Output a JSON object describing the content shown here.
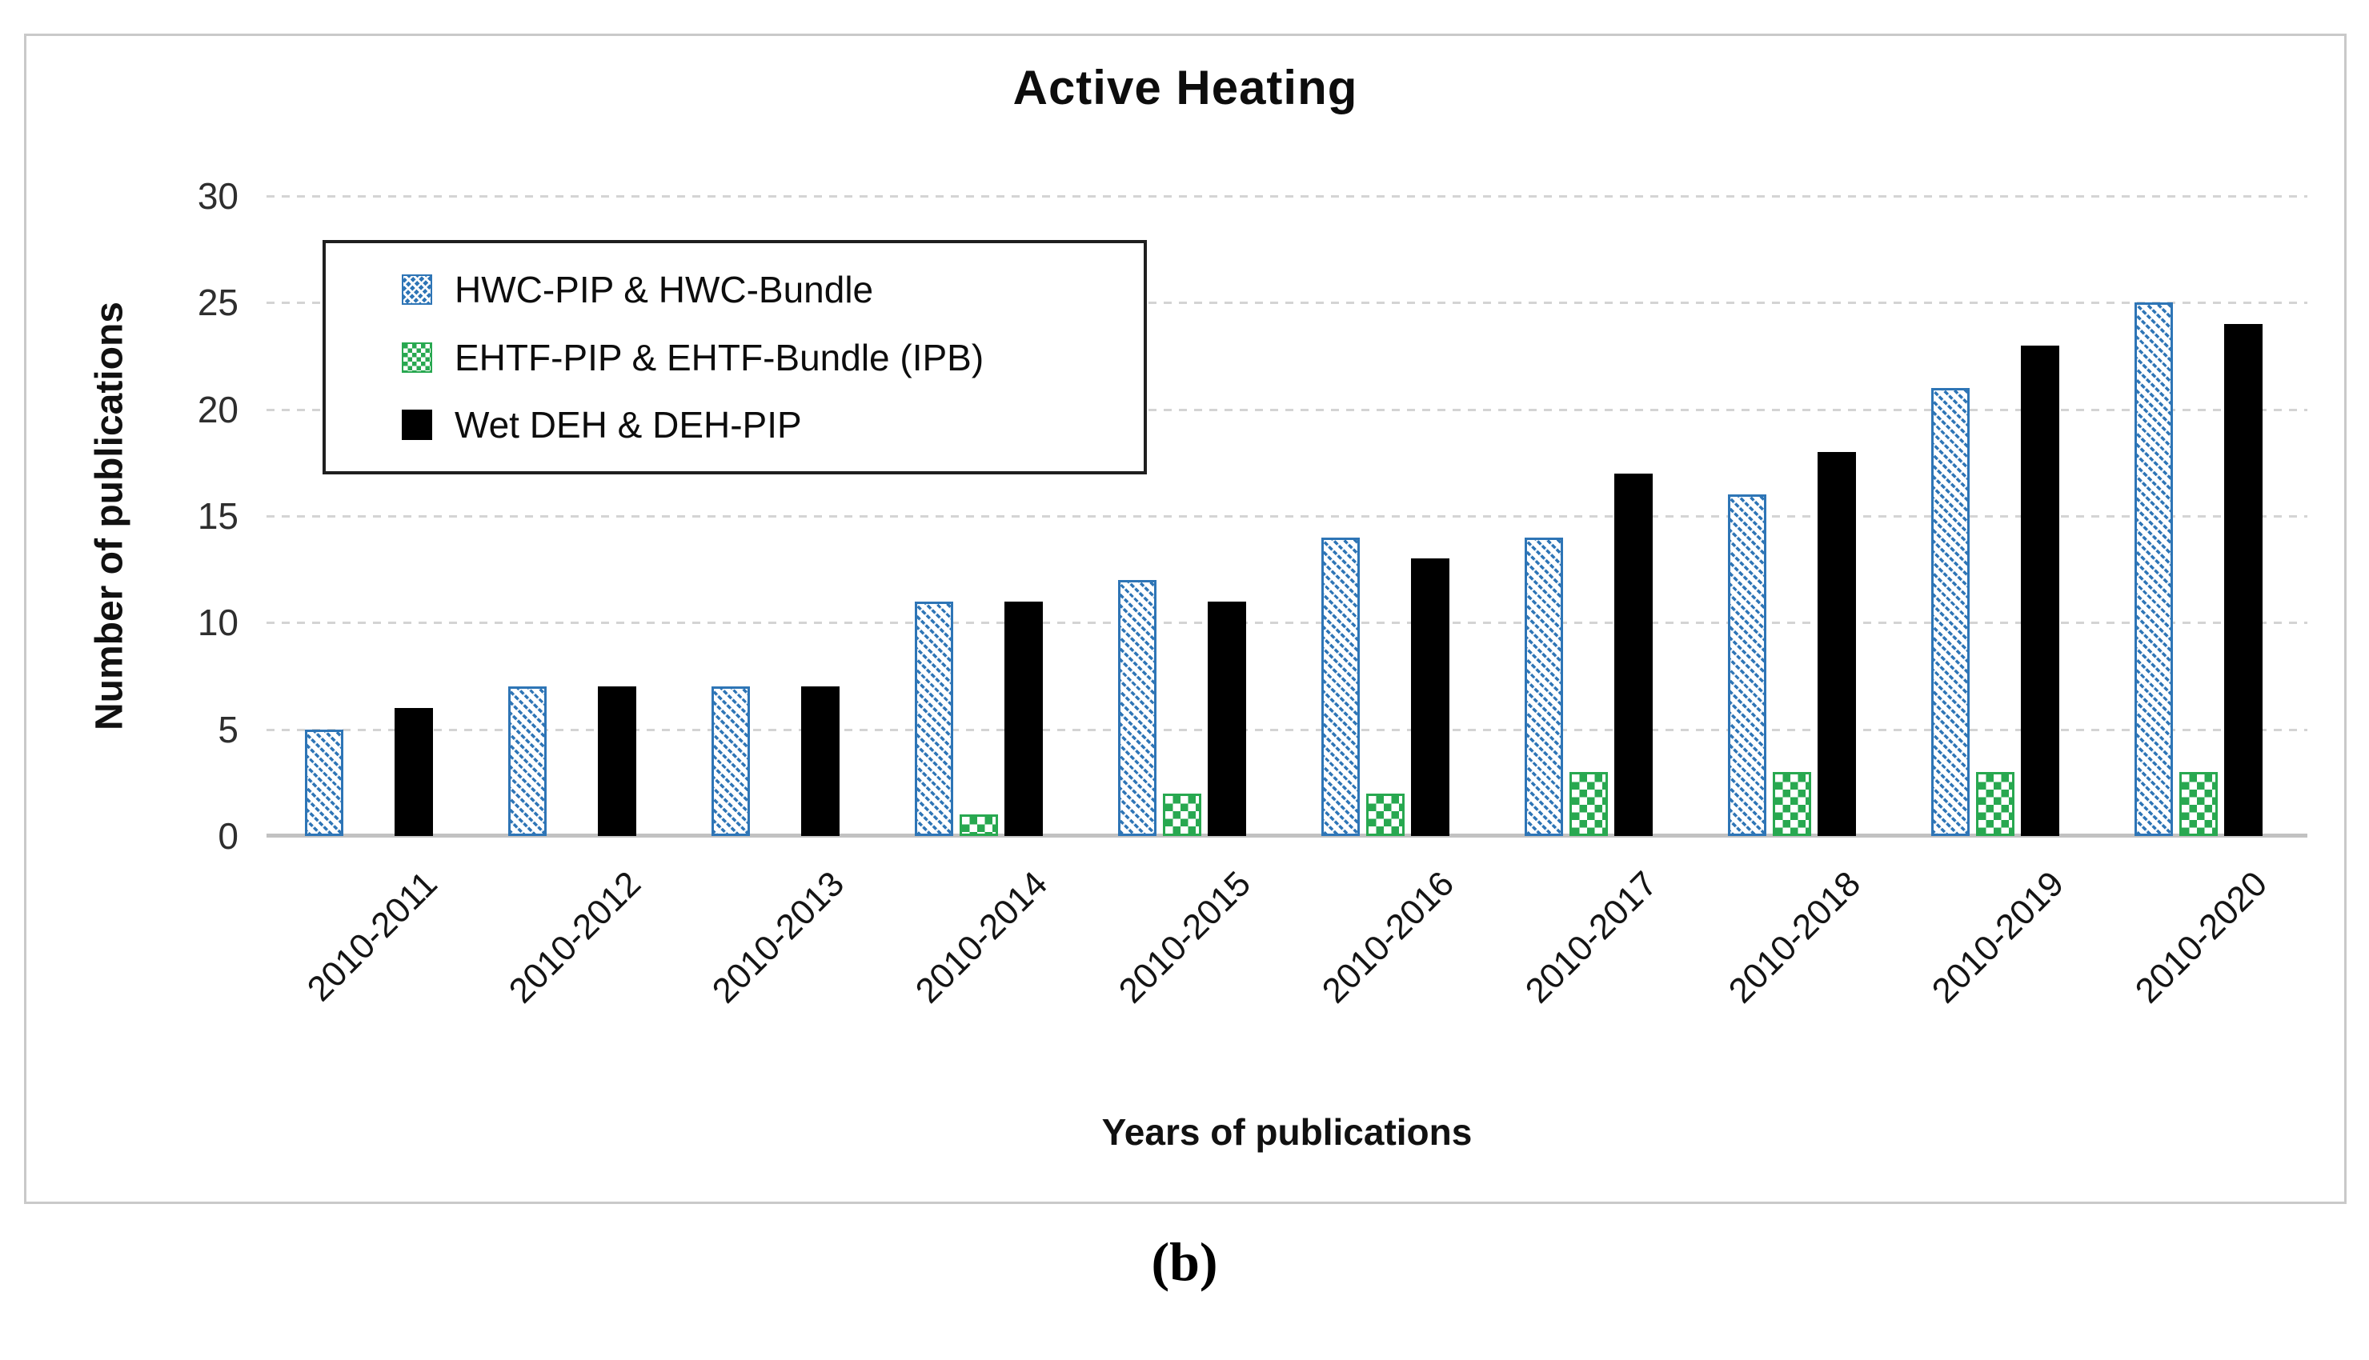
{
  "figure": {
    "caption": "(b)"
  },
  "chart_data": {
    "type": "bar",
    "title": "Active Heating",
    "xlabel": "Years of publications",
    "ylabel": "Number of publications",
    "ylim": [
      0,
      30
    ],
    "yticks": [
      0,
      5,
      10,
      15,
      20,
      25,
      30
    ],
    "grid": "horizontal-dashed",
    "legend_position": "top-left-inside",
    "categories": [
      "2010-2011",
      "2010-2012",
      "2010-2013",
      "2010-2014",
      "2010-2015",
      "2010-2016",
      "2010-2017",
      "2010-2018",
      "2010-2019",
      "2010-2020"
    ],
    "series": [
      {
        "name": "HWC-PIP & HWC-Bundle",
        "pattern": "diagonal-hatch",
        "color": "#2E75B6",
        "values": [
          5,
          7,
          7,
          11,
          12,
          14,
          14,
          16,
          21,
          25
        ]
      },
      {
        "name": "EHTF-PIP & EHTF-Bundle (IPB)",
        "pattern": "checkerboard",
        "color": "#28A850",
        "values": [
          0,
          0,
          0,
          1,
          2,
          2,
          3,
          3,
          3,
          3
        ]
      },
      {
        "name": "Wet DEH & DEH-PIP",
        "pattern": "solid",
        "color": "#000000",
        "values": [
          6,
          7,
          7,
          11,
          11,
          13,
          17,
          18,
          23,
          24
        ]
      }
    ]
  }
}
